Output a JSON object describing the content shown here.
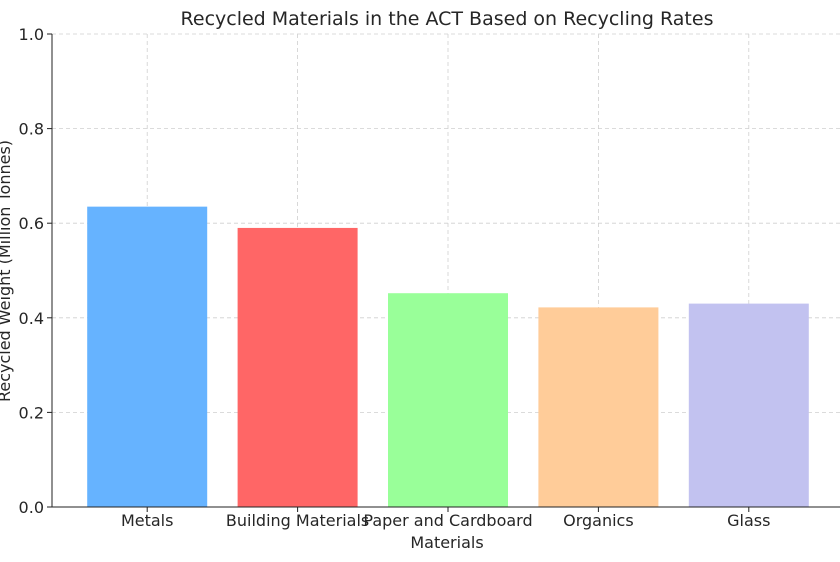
{
  "chart_data": {
    "type": "bar",
    "title": "Recycled Materials in the ACT Based on Recycling Rates",
    "xlabel": "Materials",
    "ylabel": "Recycled Weight (Million Tonnes)",
    "categories": [
      "Metals",
      "Building Materials",
      "Paper and Cardboard",
      "Organics",
      "Glass"
    ],
    "values": [
      0.635,
      0.59,
      0.452,
      0.422,
      0.43
    ],
    "colors": [
      "#66b3ff",
      "#ff6666",
      "#99ff99",
      "#ffcc99",
      "#c2c2f0"
    ],
    "ylim": [
      0,
      1.0
    ],
    "yticks": [
      "0.0",
      "0.2",
      "0.4",
      "0.6",
      "0.8",
      "1.0"
    ],
    "grid": true
  }
}
